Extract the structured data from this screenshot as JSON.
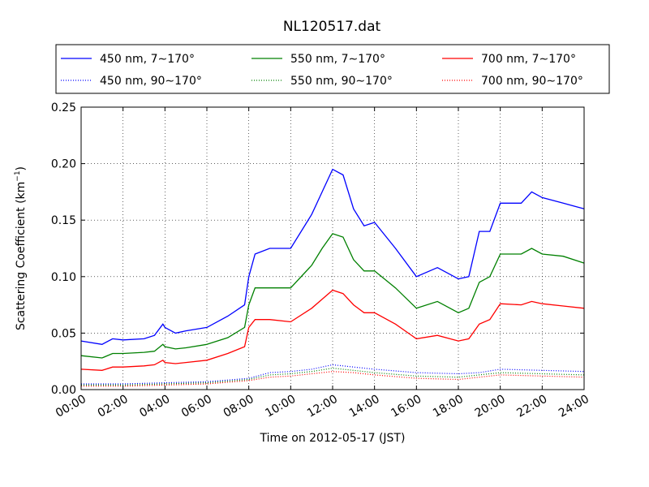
{
  "chart_data": {
    "type": "line",
    "title": "NL120517.dat",
    "xlabel": "Time on 2012-05-17 (JST)",
    "ylabel_main": "Scattering Coefficient (km",
    "ylabel_sup": "−1",
    "ylabel_end": ")",
    "xlim": [
      0,
      24
    ],
    "ylim": [
      0,
      0.25
    ],
    "grid": true,
    "legend_position": "top",
    "x_ticks": [
      0,
      2,
      4,
      6,
      8,
      10,
      12,
      14,
      16,
      18,
      20,
      22,
      24
    ],
    "x_tick_labels": [
      "00:00",
      "02:00",
      "04:00",
      "06:00",
      "08:00",
      "10:00",
      "12:00",
      "14:00",
      "16:00",
      "18:00",
      "20:00",
      "22:00",
      "24:00"
    ],
    "y_ticks": [
      0,
      0.05,
      0.1,
      0.15,
      0.2,
      0.25
    ],
    "y_tick_labels": [
      "0.00",
      "0.05",
      "0.10",
      "0.15",
      "0.20",
      "0.25"
    ],
    "series": [
      {
        "name": "450 nm, 7∼170°",
        "color": "#0000ff",
        "dash": "solid",
        "x": [
          0,
          1,
          1.5,
          2,
          3,
          3.5,
          3.9,
          4,
          4.5,
          5,
          6,
          7,
          7.8,
          8,
          8.3,
          9,
          10,
          11,
          11.5,
          12,
          12.5,
          13,
          13.5,
          14,
          15,
          16,
          17,
          18,
          18.5,
          19,
          19.5,
          20,
          21,
          21.5,
          22,
          23,
          24
        ],
        "y": [
          0.043,
          0.04,
          0.045,
          0.044,
          0.045,
          0.048,
          0.058,
          0.055,
          0.05,
          0.052,
          0.055,
          0.065,
          0.075,
          0.1,
          0.12,
          0.125,
          0.125,
          0.155,
          0.175,
          0.195,
          0.19,
          0.16,
          0.145,
          0.148,
          0.125,
          0.1,
          0.108,
          0.098,
          0.1,
          0.14,
          0.14,
          0.165,
          0.165,
          0.175,
          0.17,
          0.165,
          0.16
        ]
      },
      {
        "name": "550 nm, 7∼170°",
        "color": "#008000",
        "dash": "solid",
        "x": [
          0,
          1,
          1.5,
          2,
          3,
          3.5,
          3.9,
          4,
          4.5,
          5,
          6,
          7,
          7.8,
          8,
          8.3,
          9,
          10,
          11,
          11.5,
          12,
          12.5,
          13,
          13.5,
          14,
          15,
          16,
          17,
          18,
          18.5,
          19,
          19.5,
          20,
          21,
          21.5,
          22,
          23,
          24
        ],
        "y": [
          0.03,
          0.028,
          0.032,
          0.032,
          0.033,
          0.034,
          0.04,
          0.038,
          0.036,
          0.037,
          0.04,
          0.046,
          0.055,
          0.075,
          0.09,
          0.09,
          0.09,
          0.11,
          0.125,
          0.138,
          0.135,
          0.115,
          0.105,
          0.105,
          0.09,
          0.072,
          0.078,
          0.068,
          0.072,
          0.095,
          0.1,
          0.12,
          0.12,
          0.125,
          0.12,
          0.118,
          0.112
        ]
      },
      {
        "name": "700 nm, 7∼170°",
        "color": "#ff0000",
        "dash": "solid",
        "x": [
          0,
          1,
          1.5,
          2,
          3,
          3.5,
          3.9,
          4,
          4.5,
          5,
          6,
          7,
          7.8,
          8,
          8.3,
          9,
          10,
          11,
          11.5,
          12,
          12.5,
          13,
          13.5,
          14,
          15,
          16,
          17,
          18,
          18.5,
          19,
          19.5,
          20,
          21,
          21.5,
          22,
          23,
          24
        ],
        "y": [
          0.018,
          0.017,
          0.02,
          0.02,
          0.021,
          0.022,
          0.026,
          0.024,
          0.023,
          0.024,
          0.026,
          0.032,
          0.038,
          0.055,
          0.062,
          0.062,
          0.06,
          0.072,
          0.08,
          0.088,
          0.085,
          0.075,
          0.068,
          0.068,
          0.058,
          0.045,
          0.048,
          0.043,
          0.045,
          0.058,
          0.062,
          0.076,
          0.075,
          0.078,
          0.076,
          0.074,
          0.072
        ]
      },
      {
        "name": "450 nm, 90∼170°",
        "color": "#0000ff",
        "dash": "dotted",
        "x": [
          0,
          2,
          4,
          6,
          8,
          9,
          10,
          11,
          12,
          13,
          14,
          16,
          18,
          19,
          20,
          22,
          24
        ],
        "y": [
          0.005,
          0.005,
          0.006,
          0.007,
          0.01,
          0.015,
          0.016,
          0.018,
          0.022,
          0.02,
          0.018,
          0.015,
          0.014,
          0.015,
          0.018,
          0.017,
          0.016
        ]
      },
      {
        "name": "550 nm, 90∼170°",
        "color": "#008000",
        "dash": "dotted",
        "x": [
          0,
          2,
          4,
          6,
          8,
          9,
          10,
          11,
          12,
          13,
          14,
          16,
          18,
          19,
          20,
          22,
          24
        ],
        "y": [
          0.004,
          0.004,
          0.005,
          0.006,
          0.009,
          0.013,
          0.014,
          0.016,
          0.019,
          0.017,
          0.015,
          0.012,
          0.011,
          0.013,
          0.015,
          0.014,
          0.013
        ]
      },
      {
        "name": "700 nm, 90∼170°",
        "color": "#ff0000",
        "dash": "dotted",
        "x": [
          0,
          2,
          4,
          6,
          8,
          9,
          10,
          11,
          12,
          13,
          14,
          16,
          18,
          19,
          20,
          22,
          24
        ],
        "y": [
          0.003,
          0.003,
          0.004,
          0.005,
          0.008,
          0.011,
          0.012,
          0.014,
          0.016,
          0.015,
          0.013,
          0.01,
          0.009,
          0.011,
          0.013,
          0.012,
          0.011
        ]
      }
    ]
  }
}
